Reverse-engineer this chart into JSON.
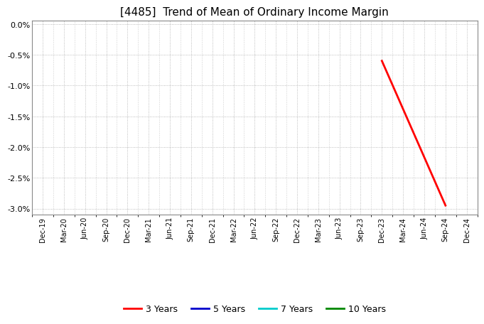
{
  "title": "[4485]  Trend of Mean of Ordinary Income Margin",
  "title_fontsize": 11,
  "ylim": [
    -0.031,
    0.0005
  ],
  "yticks": [
    0.0,
    -0.005,
    -0.01,
    -0.015,
    -0.02,
    -0.025,
    -0.03
  ],
  "ytick_labels": [
    "0.0%",
    "-0.5%",
    "-1.0%",
    "-1.5%",
    "-2.0%",
    "-2.5%",
    "-3.0%"
  ],
  "background_color": "#ffffff",
  "plot_bg_color": "#ffffff",
  "grid_color": "#aaaaaa",
  "series": [
    {
      "label": "3 Years",
      "color": "#ff0000",
      "x": [
        "Dec-23",
        "Sep-24"
      ],
      "y": [
        -0.006,
        -0.0295
      ]
    },
    {
      "label": "5 Years",
      "color": "#0000cc",
      "x": [],
      "y": []
    },
    {
      "label": "7 Years",
      "color": "#00cccc",
      "x": [],
      "y": []
    },
    {
      "label": "10 Years",
      "color": "#008800",
      "x": [],
      "y": []
    }
  ],
  "xtick_labels": [
    "Dec-19",
    "Mar-20",
    "Jun-20",
    "Sep-20",
    "Dec-20",
    "Mar-21",
    "Jun-21",
    "Sep-21",
    "Dec-21",
    "Mar-22",
    "Jun-22",
    "Sep-22",
    "Dec-22",
    "Mar-23",
    "Jun-23",
    "Sep-23",
    "Dec-23",
    "Mar-24",
    "Jun-24",
    "Sep-24",
    "Dec-24"
  ],
  "linewidth": 2.0
}
